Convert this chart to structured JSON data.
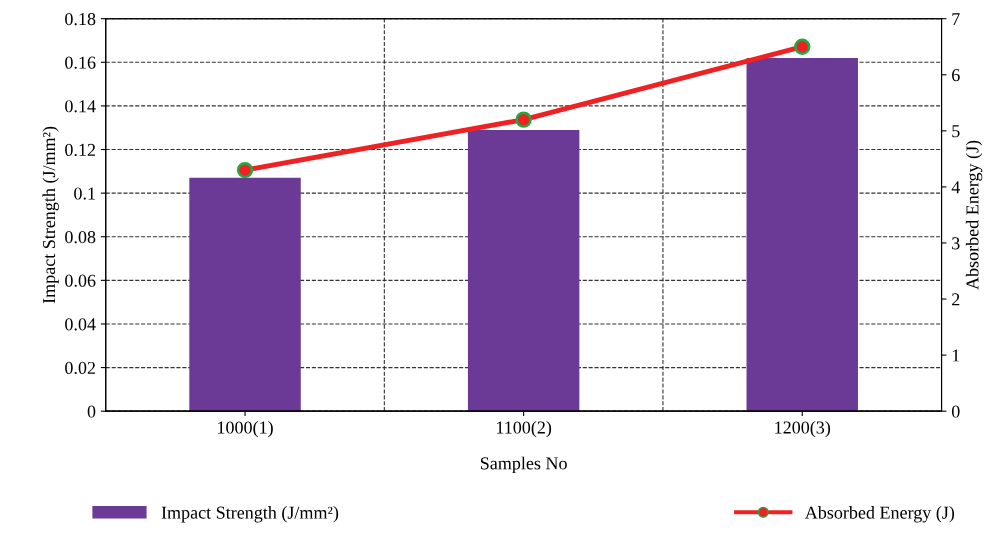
{
  "chart_data": {
    "type": "bar",
    "xlabel": "Samples No",
    "ylabel": "Impact Strength (J/mm²)",
    "y2label": "Absorbed Energy (J)",
    "categories": [
      "1000(1)",
      "1100(2)",
      "1200(3)"
    ],
    "series": [
      {
        "name": "Impact Strength (J/mm²)",
        "color": "#6b3996",
        "values": [
          0.107,
          0.129,
          0.162
        ]
      },
      {
        "name": "Absorbed Energy (J)",
        "type": "line",
        "axis": "y2",
        "color": "#ee2222",
        "values": [
          4.3,
          5.2,
          6.5
        ]
      }
    ],
    "ylim": [
      0,
      0.18
    ],
    "yticks": [
      0,
      0.02,
      0.04,
      0.06,
      0.08,
      0.1,
      0.12,
      0.14,
      0.16,
      0.18
    ],
    "y2lim": [
      0,
      7
    ],
    "y2ticks": [
      0,
      1,
      2,
      3,
      4,
      5,
      6,
      7
    ],
    "grid": true,
    "legend": "bottom",
    "marker": "circle",
    "line_style": "solid"
  }
}
